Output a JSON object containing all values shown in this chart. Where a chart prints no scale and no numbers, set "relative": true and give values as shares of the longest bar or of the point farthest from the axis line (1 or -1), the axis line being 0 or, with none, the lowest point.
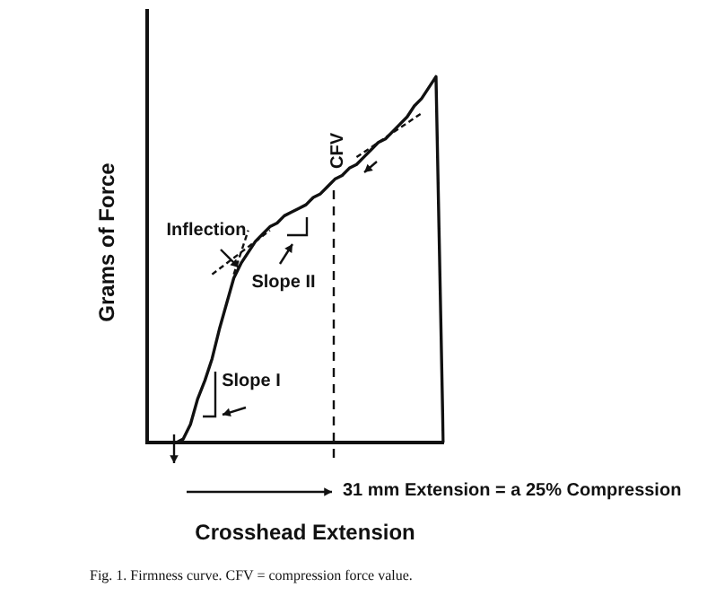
{
  "chart_data": {
    "type": "line",
    "relative": true,
    "xlabel": "Crosshead Extension",
    "ylabel": "Grams of Force",
    "grid": false,
    "marker": "none",
    "categories": [
      null,
      null,
      null,
      null,
      null,
      null,
      null,
      null,
      null,
      null,
      null,
      null,
      null,
      null,
      null,
      null,
      null,
      null,
      null,
      null,
      null,
      null,
      null,
      null,
      null,
      null,
      null,
      null,
      null,
      null,
      null,
      null,
      null,
      null,
      null,
      null,
      null,
      null,
      null,
      null,
      null,
      null
    ],
    "series": [
      {
        "color": "#111111",
        "line_style": "solid",
        "values": [
          0,
          0,
          0,
          0,
          0,
          0.01,
          0.05,
          0.12,
          0.17,
          0.23,
          0.31,
          0.38,
          0.45,
          0.49,
          0.52,
          0.55,
          0.57,
          0.59,
          0.6,
          0.62,
          0.63,
          0.64,
          0.65,
          0.67,
          0.68,
          0.7,
          0.72,
          0.73,
          0.75,
          0.76,
          0.78,
          0.8,
          0.82,
          0.83,
          0.85,
          0.87,
          0.89,
          0.92,
          0.94,
          0.97,
          1,
          0
        ]
      },
      {
        "color": "#111111",
        "line_style": "dashed",
        "values": [
          null,
          null,
          null,
          null,
          null,
          null,
          null,
          null,
          null,
          0.46,
          null,
          null,
          null,
          null,
          null,
          null,
          null,
          0.58,
          null,
          null,
          null,
          null,
          null,
          null,
          null,
          null,
          null,
          null,
          null,
          null,
          null,
          null,
          null,
          null,
          null,
          null,
          null,
          null,
          null,
          null,
          null,
          null
        ]
      },
      {
        "color": "#111111",
        "line_style": "dashed",
        "values": [
          null,
          null,
          null,
          null,
          null,
          null,
          null,
          null,
          null,
          null,
          null,
          null,
          0.46,
          null,
          0.58,
          null,
          null,
          null,
          null,
          null,
          null,
          null,
          null,
          null,
          null,
          null,
          null,
          null,
          null,
          null,
          null,
          null,
          null,
          null,
          null,
          null,
          null,
          null,
          null,
          null,
          null,
          null
        ]
      },
      {
        "color": "#111111",
        "line_style": "dashed",
        "values": [
          null,
          null,
          null,
          null,
          null,
          null,
          null,
          null,
          null,
          null,
          null,
          null,
          null,
          null,
          null,
          null,
          null,
          null,
          null,
          null,
          null,
          null,
          null,
          null,
          null,
          null,
          null,
          null,
          null,
          0.78,
          null,
          null,
          null,
          null,
          null,
          null,
          null,
          null,
          0.9,
          null,
          null,
          null
        ]
      }
    ],
    "annotations": [
      "Inflection",
      "Slope II",
      "Slope I",
      "CFV",
      "31 mm Extension = a 25% Compression",
      "Fig. 1. Firmness curve. CFV = compression force value."
    ]
  }
}
